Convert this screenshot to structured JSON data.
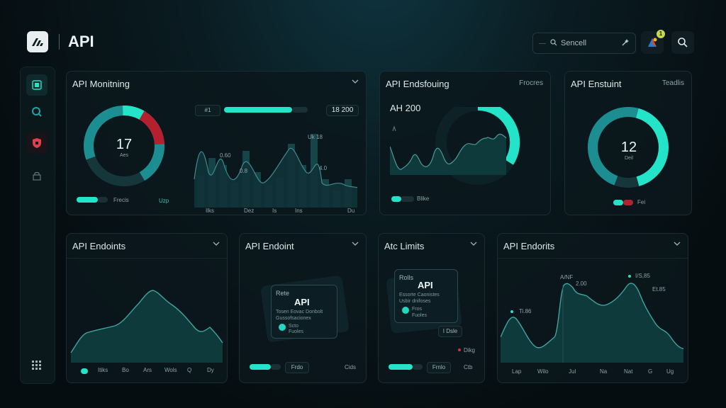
{
  "header": {
    "title": "API",
    "search_placeholder": "Sencell",
    "notification_count": "1"
  },
  "colors": {
    "accent": "#23e3c8",
    "teal": "#1c8e91",
    "alert": "#b5202e",
    "bg": "#071216"
  },
  "sidebar": {
    "icons": [
      "dashboard-icon",
      "search-icon",
      "shield-icon",
      "lock-icon",
      "grid-icon"
    ]
  },
  "panel1": {
    "title": "API Monitning",
    "donut_value": "17",
    "donut_label": "Aes",
    "ring_fraction": 0.72,
    "top_badge": "#1",
    "top_value": "18 200",
    "legend": [
      "Frecis",
      "Uzp"
    ],
    "labels": [
      "0.60",
      "0.8",
      "Uk 18",
      "4.0"
    ],
    "xticks": [
      "Ilks",
      "Dez",
      "Is",
      "Ins",
      "Du"
    ]
  },
  "panel2": {
    "title": "API Endsfouing",
    "right_label": "Frocres",
    "value": "AH 200",
    "legend": "Blike"
  },
  "panel3": {
    "title": "API Enstuint",
    "right_label": "Teadlis",
    "donut_value": "12",
    "donut_label": "Deil",
    "legend": "Fei"
  },
  "panel4": {
    "title": "API Endoints",
    "xticks": [
      "Itiks",
      "Bo",
      "Ars",
      "Wols",
      "Q",
      "Dy"
    ]
  },
  "panel5": {
    "title": "API Endoint",
    "card": {
      "label": "Rete",
      "big": "API",
      "sub1": "Tosen Eovac Donbolt",
      "sub2": "Gussofsacionex",
      "row1": "Scto",
      "row2": "Fuoles"
    },
    "legend": [
      "Frdo",
      "Cids"
    ]
  },
  "panel6": {
    "title": "Atc Limits",
    "card": {
      "label": "Rolls",
      "big": "API",
      "sub1": "Essorte Caonistes",
      "sub2": "Usbir dnifoses",
      "row1": "Fros",
      "row2": "Fuoles"
    },
    "tag": "I Dsle",
    "alert_label": "Dikg",
    "legend": [
      "Frnlo",
      "Ctb"
    ]
  },
  "panel7": {
    "title": "API Endorits",
    "annotations": [
      "A/NF",
      "2.00",
      "Ti.86",
      "Et.85",
      "I/S,85"
    ],
    "xticks": [
      "Lap",
      "Wilo",
      "Jul",
      "Na",
      "Nat",
      "G",
      "Ug"
    ]
  }
}
